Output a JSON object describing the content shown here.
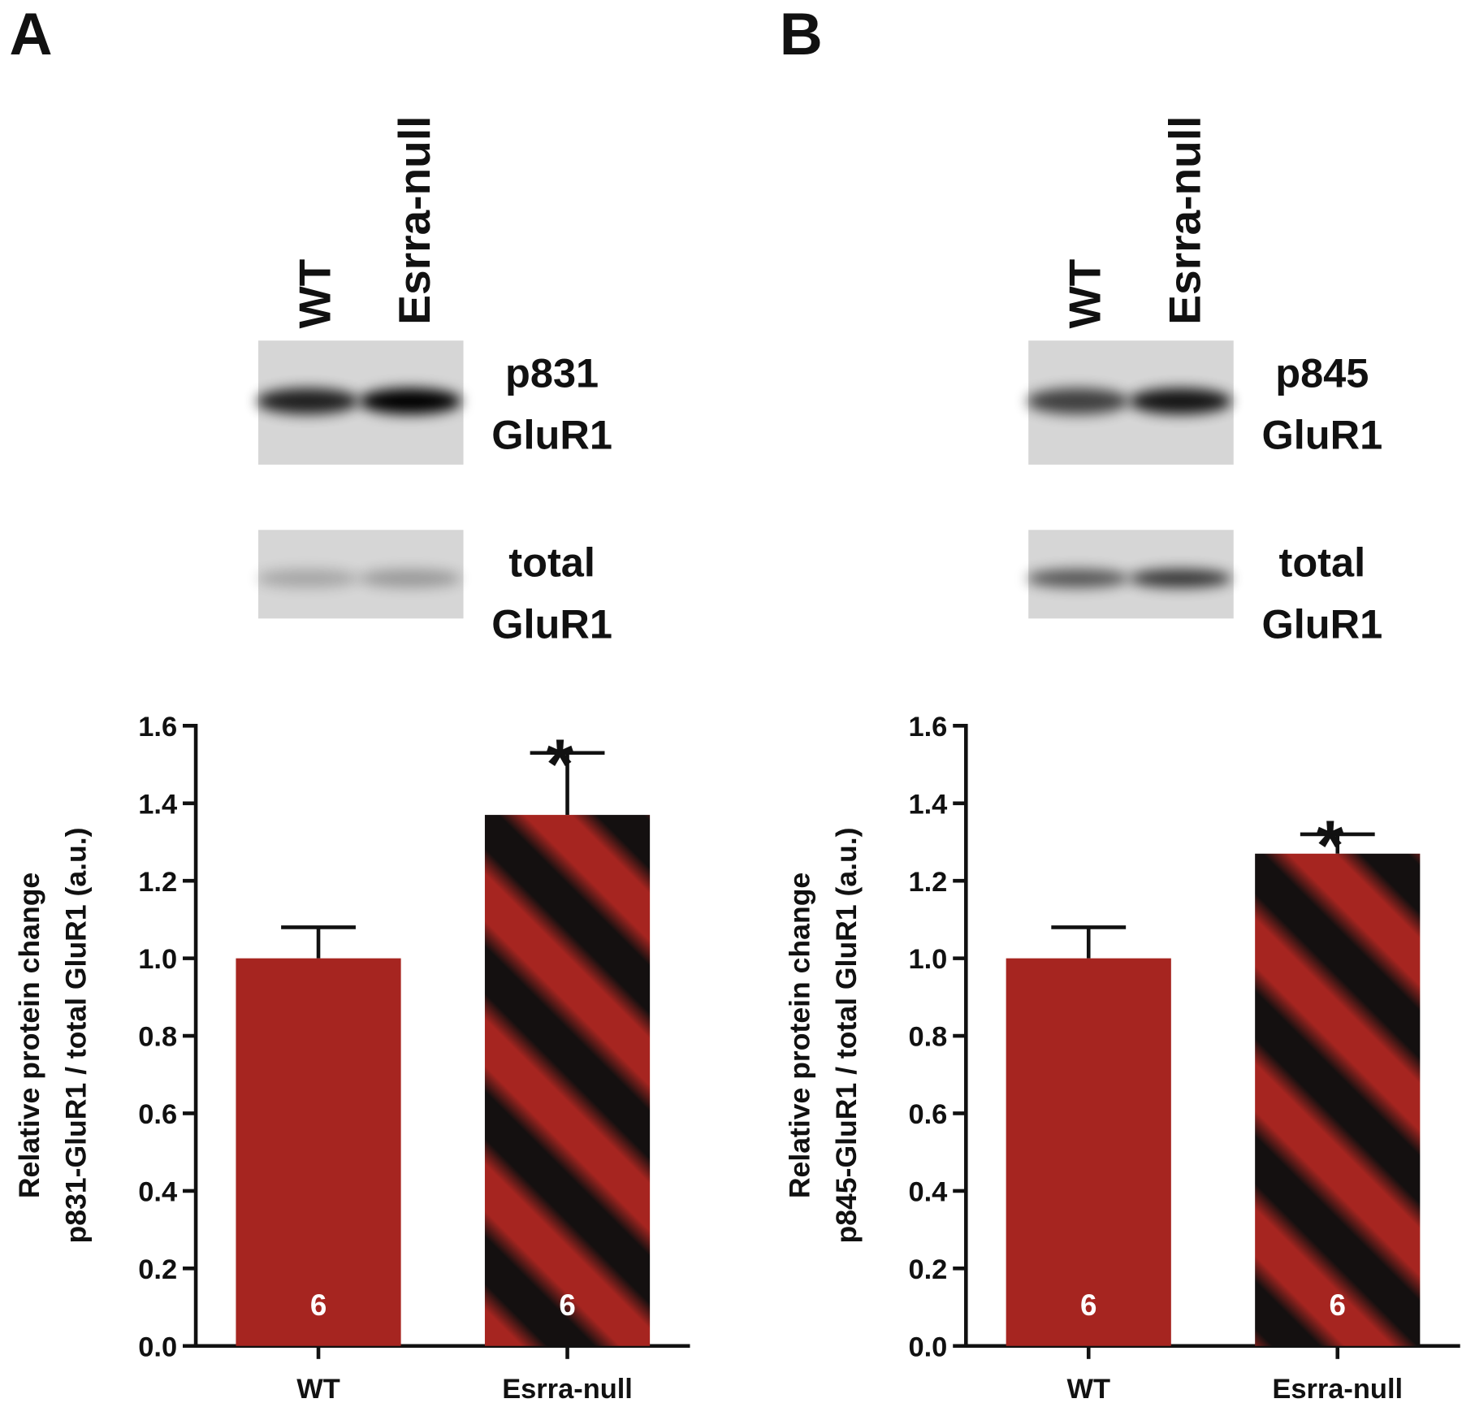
{
  "chart_data": [
    {
      "type": "bar",
      "panel": "A",
      "lane_labels": [
        "WT",
        "Esrra-null"
      ],
      "blots": [
        [
          "p831",
          "GluR1"
        ],
        [
          "total",
          "GluR1"
        ]
      ],
      "ylabel": [
        "Relative protein change",
        "p831-GluR1 / total GluR1 (a.u.)"
      ],
      "categories": [
        "WT",
        "Esrra-null"
      ],
      "values": [
        1.0,
        1.37
      ],
      "errors": [
        0.08,
        0.16
      ],
      "n": [
        6,
        6
      ],
      "significance": [
        null,
        "*"
      ],
      "colors": [
        "#a62520",
        "#a62520"
      ],
      "hatch": [
        false,
        true
      ],
      "hatch_color": "#141010",
      "ylim": [
        0,
        1.6
      ],
      "yticks": [
        {
          "value": 0,
          "label": "0.0"
        },
        0.2,
        0.4,
        0.6,
        0.8,
        {
          "value": 1,
          "label": "1.0"
        },
        1.2,
        1.4,
        1.6
      ]
    },
    {
      "type": "bar",
      "panel": "B",
      "lane_labels": [
        "WT",
        "Esrra-null"
      ],
      "blots": [
        [
          "p845",
          "GluR1"
        ],
        [
          "total",
          "GluR1"
        ]
      ],
      "ylabel": [
        "Relative protein change",
        "p845-GluR1 / total GluR1 (a.u.)"
      ],
      "categories": [
        "WT",
        "Esrra-null"
      ],
      "values": [
        1.0,
        1.27
      ],
      "errors": [
        0.08,
        0.05
      ],
      "n": [
        6,
        6
      ],
      "significance": [
        null,
        "*"
      ],
      "colors": [
        "#a62520",
        "#a62520"
      ],
      "hatch": [
        false,
        true
      ],
      "hatch_color": "#141010",
      "ylim": [
        0,
        1.6
      ],
      "yticks": [
        {
          "value": 0,
          "label": "0.0"
        },
        0.2,
        0.4,
        0.6,
        0.8,
        {
          "value": 1,
          "label": "1.0"
        },
        1.2,
        1.4,
        1.6
      ]
    }
  ]
}
